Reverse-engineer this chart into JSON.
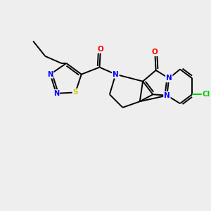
{
  "background_color": "#eeeeee",
  "bond_color": "#000000",
  "N_color": "#0000ff",
  "O_color": "#ff0000",
  "S_color": "#cccc00",
  "Cl_color": "#00cc00",
  "figsize": [
    3.0,
    3.0
  ],
  "dpi": 100,
  "xlim": [
    0,
    10
  ],
  "ylim": [
    0,
    10
  ]
}
